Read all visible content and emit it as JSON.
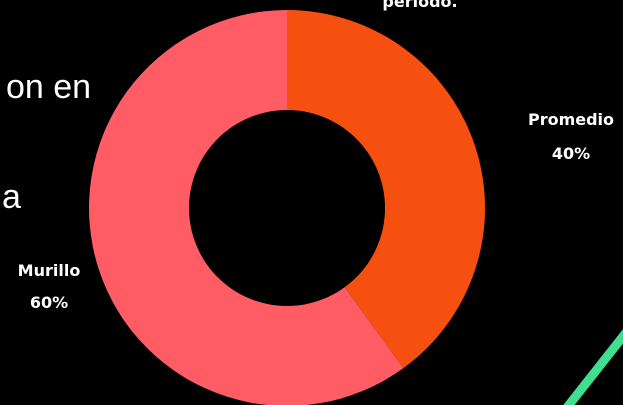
{
  "background_text": {
    "line1": "on en",
    "line2": "a"
  },
  "chart_data": {
    "type": "pie",
    "title": "periodo.",
    "categories": [
      "Promedio",
      "Murillo"
    ],
    "values": [
      40,
      60
    ],
    "labels": [
      {
        "name": "Promedio",
        "percent": "40%"
      },
      {
        "name": "Murillo",
        "percent": "60%"
      }
    ],
    "colors": [
      "#f5500f",
      "#ff5c66"
    ],
    "donut": true
  },
  "colors": {
    "background": "#000000",
    "accent_line": "#3ee08f",
    "hole": "#000000"
  }
}
